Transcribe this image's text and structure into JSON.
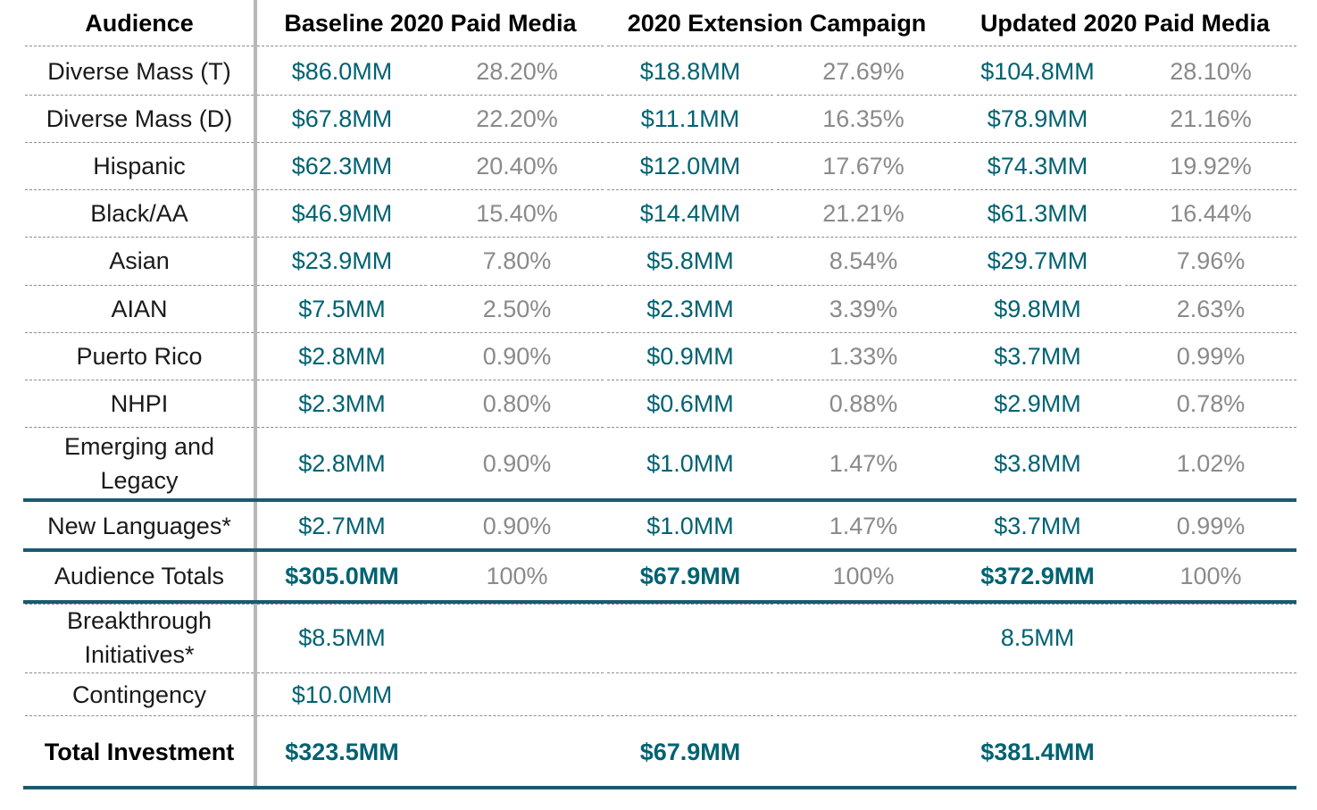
{
  "header": {
    "audience": "Audience",
    "baseline": "Baseline 2020 Paid Media",
    "extension": "2020 Extension Campaign",
    "updated": "Updated 2020 Paid Media"
  },
  "rows": [
    {
      "audience": "Diverse Mass (T)",
      "base_amt": "$86.0MM",
      "base_pct": "28.20%",
      "ext_amt": "$18.8MM",
      "ext_pct": "27.69%",
      "upd_amt": "$104.8MM",
      "upd_pct": "28.10%"
    },
    {
      "audience": "Diverse Mass (D)",
      "base_amt": "$67.8MM",
      "base_pct": "22.20%",
      "ext_amt": "$11.1MM",
      "ext_pct": "16.35%",
      "upd_amt": "$78.9MM",
      "upd_pct": "21.16%"
    },
    {
      "audience": "Hispanic",
      "base_amt": "$62.3MM",
      "base_pct": "20.40%",
      "ext_amt": "$12.0MM",
      "ext_pct": "17.67%",
      "upd_amt": "$74.3MM",
      "upd_pct": "19.92%"
    },
    {
      "audience": "Black/AA",
      "base_amt": "$46.9MM",
      "base_pct": "15.40%",
      "ext_amt": "$14.4MM",
      "ext_pct": "21.21%",
      "upd_amt": "$61.3MM",
      "upd_pct": "16.44%"
    },
    {
      "audience": "Asian",
      "base_amt": "$23.9MM",
      "base_pct": "7.80%",
      "ext_amt": "$5.8MM",
      "ext_pct": "8.54%",
      "upd_amt": "$29.7MM",
      "upd_pct": "7.96%"
    },
    {
      "audience": "AIAN",
      "base_amt": "$7.5MM",
      "base_pct": "2.50%",
      "ext_amt": "$2.3MM",
      "ext_pct": "3.39%",
      "upd_amt": "$9.8MM",
      "upd_pct": "2.63%"
    },
    {
      "audience": "Puerto Rico",
      "base_amt": "$2.8MM",
      "base_pct": "0.90%",
      "ext_amt": "$0.9MM",
      "ext_pct": "1.33%",
      "upd_amt": "$3.7MM",
      "upd_pct": "0.99%"
    },
    {
      "audience": "NHPI",
      "base_amt": "$2.3MM",
      "base_pct": "0.80%",
      "ext_amt": "$0.6MM",
      "ext_pct": "0.88%",
      "upd_amt": "$2.9MM",
      "upd_pct": "0.78%"
    },
    {
      "audience": "Emerging and Legacy",
      "base_amt": "$2.8MM",
      "base_pct": "0.90%",
      "ext_amt": "$1.0MM",
      "ext_pct": "1.47%",
      "upd_amt": "$3.8MM",
      "upd_pct": "1.02%"
    },
    {
      "audience": "New Languages*",
      "base_amt": "$2.7MM",
      "base_pct": "0.90%",
      "ext_amt": "$1.0MM",
      "ext_pct": "1.47%",
      "upd_amt": "$3.7MM",
      "upd_pct": "0.99%"
    },
    {
      "audience": "Audience Totals",
      "base_amt": "$305.0MM",
      "base_pct": "100%",
      "ext_amt": "$67.9MM",
      "ext_pct": "100%",
      "upd_amt": "$372.9MM",
      "upd_pct": "100%"
    },
    {
      "audience": "Breakthrough Initiatives*",
      "base_amt": "$8.5MM",
      "base_pct": "",
      "ext_amt": "",
      "ext_pct": "",
      "upd_amt": "8.5MM",
      "upd_pct": ""
    },
    {
      "audience": "Contingency",
      "base_amt": "$10.0MM",
      "base_pct": "",
      "ext_amt": "",
      "ext_pct": "",
      "upd_amt": "",
      "upd_pct": ""
    },
    {
      "audience": "Total Investment",
      "base_amt": "$323.5MM",
      "base_pct": "",
      "ext_amt": "$67.9MM",
      "ext_pct": "",
      "upd_amt": "$381.4MM",
      "upd_pct": ""
    }
  ],
  "colors": {
    "amount_text": "#006272",
    "percent_text": "#8a8a8a",
    "section_rule": "#1b5a70",
    "column_divider": "#b7b7b7"
  }
}
